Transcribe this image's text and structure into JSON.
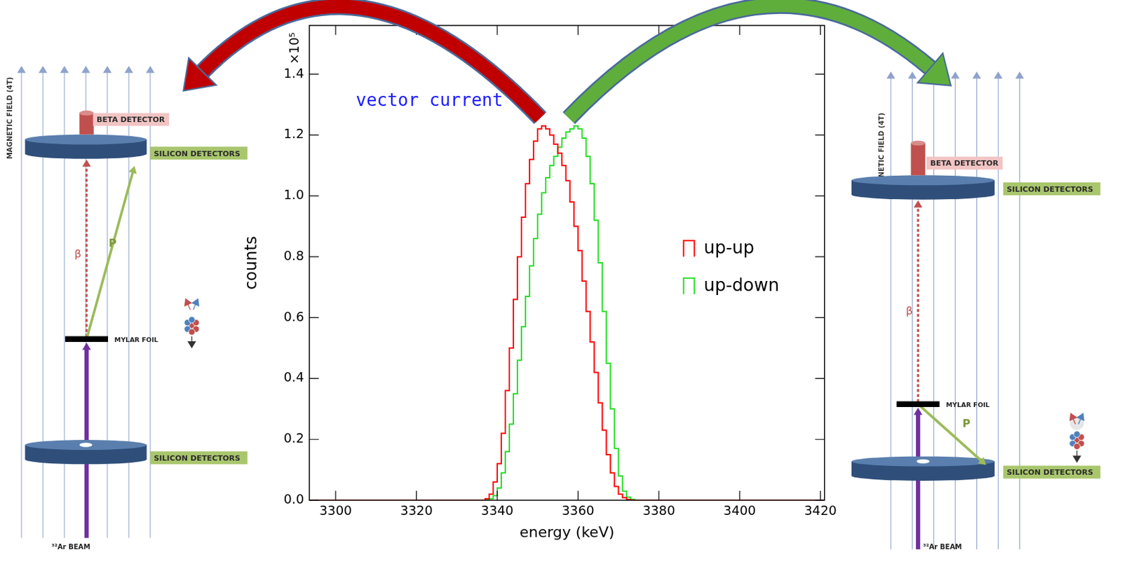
{
  "chart_data": {
    "type": "histogram",
    "xlabel": "energy (keV)",
    "ylabel": "counts",
    "y_multiplier": "×10⁵",
    "bins": [
      3336,
      3337,
      3338,
      3339,
      3340,
      3341,
      3342,
      3343,
      3344,
      3345,
      3346,
      3347,
      3348,
      3349,
      3350,
      3351,
      3352,
      3353,
      3354,
      3355,
      3356,
      3357,
      3358,
      3359,
      3360,
      3361,
      3362,
      3363,
      3364,
      3365,
      3366,
      3367,
      3368,
      3369,
      3370,
      3371,
      3372,
      3373,
      3374,
      3375,
      3376,
      3377,
      3378
    ],
    "series": [
      {
        "name": "up-up",
        "color": "#ff0000",
        "values": [
          0,
          0,
          0.005,
          0.02,
          0.06,
          0.12,
          0.22,
          0.36,
          0.5,
          0.66,
          0.8,
          0.93,
          1.04,
          1.12,
          1.18,
          1.22,
          1.23,
          1.22,
          1.2,
          1.17,
          1.14,
          1.1,
          1.05,
          0.98,
          0.9,
          0.82,
          0.72,
          0.62,
          0.52,
          0.42,
          0.32,
          0.23,
          0.15,
          0.09,
          0.045,
          0.02,
          0.008,
          0.002,
          0,
          0,
          0,
          0
        ]
      },
      {
        "name": "up-down",
        "color": "#22dd22",
        "values": [
          0,
          0,
          0,
          0.005,
          0.015,
          0.04,
          0.09,
          0.16,
          0.25,
          0.35,
          0.46,
          0.57,
          0.67,
          0.77,
          0.86,
          0.94,
          1.01,
          1.06,
          1.1,
          1.13,
          1.16,
          1.19,
          1.21,
          1.22,
          1.23,
          1.22,
          1.19,
          1.13,
          1.04,
          0.92,
          0.78,
          0.62,
          0.45,
          0.3,
          0.17,
          0.08,
          0.03,
          0.01,
          0.003,
          0,
          0,
          0
        ]
      }
    ],
    "xlim": [
      3293.5,
      3421
    ],
    "xticks": [
      3300,
      3320,
      3340,
      3360,
      3380,
      3400,
      3420
    ],
    "ylim": [
      0,
      1.56
    ],
    "yticks": [
      {
        "value": 0,
        "label": "0.0"
      },
      {
        "value": 0.2,
        "label": "0.2"
      },
      {
        "value": 0.4,
        "label": "0.4"
      },
      {
        "value": 0.6,
        "label": "0.6"
      },
      {
        "value": 0.8,
        "label": "0.8"
      },
      {
        "value": 1.0,
        "label": "1.0"
      },
      {
        "value": 1.2,
        "label": "1.2"
      },
      {
        "value": 1.4,
        "label": "1.4"
      }
    ],
    "grid": false,
    "legend": "right",
    "annotations": [
      {
        "text": "vector current",
        "x": 3305,
        "y": 1.31,
        "color": "#1a1aff"
      }
    ]
  },
  "diagrams": [
    {
      "magnetic_field": "MAGNETIC FIELD (4T)",
      "beta_detector": "BETA DETECTOR",
      "silicon_detectors": [
        "SILICON DETECTORS",
        "SILICON DETECTORS"
      ],
      "foil": "MYLAR FOIL",
      "beam": "³²Ar BEAM",
      "beta": "β",
      "proton": "P"
    },
    {
      "magnetic_field": "MAGNETIC FIELD (4T)",
      "beta_detector": "BETA DETECTOR",
      "silicon_detectors": [
        "SILICON DETECTORS",
        "SILICON DETECTORS"
      ],
      "foil": "MYLAR FOIL",
      "beam": "³²Ar BEAM",
      "beta": "β",
      "proton": "P"
    }
  ]
}
